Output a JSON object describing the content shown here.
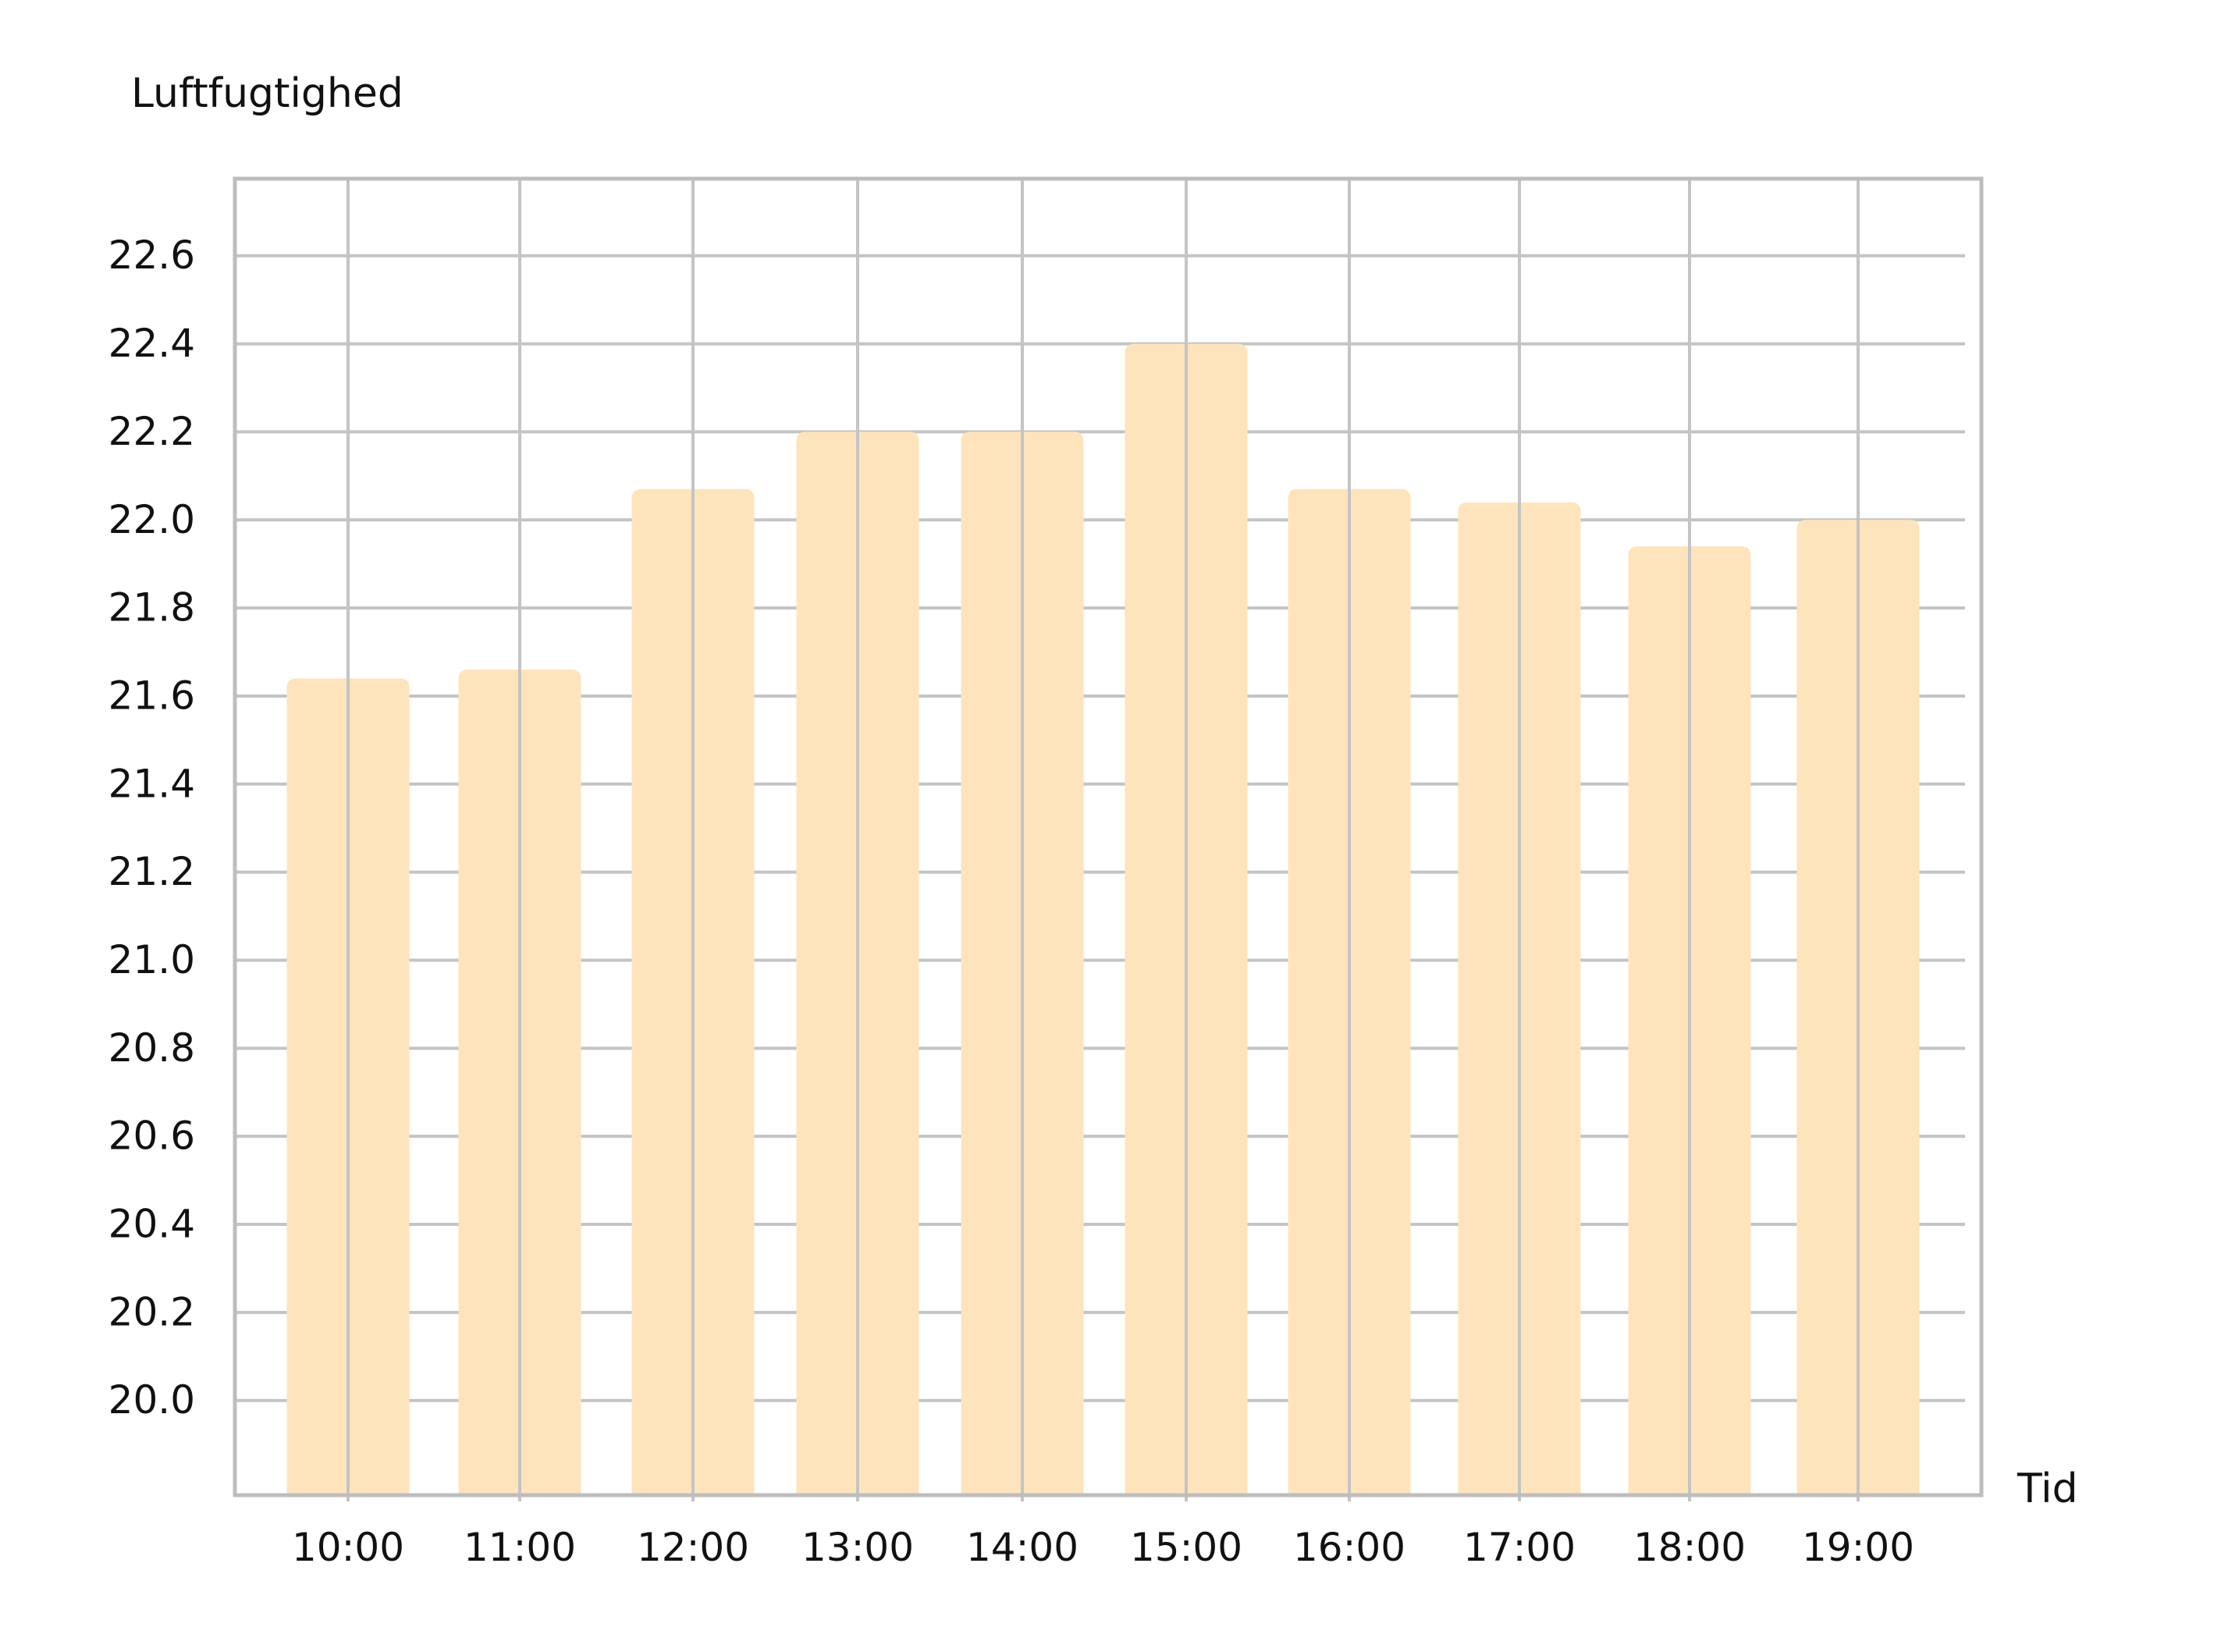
{
  "chart_data": {
    "type": "bar",
    "xlabel": "Tid",
    "ylabel": "Luftfugtighed",
    "categories": [
      "10:00",
      "11:00",
      "12:00",
      "13:00",
      "14:00",
      "15:00",
      "16:00",
      "17:00",
      "18:00",
      "19:00"
    ],
    "values": [
      21.64,
      21.66,
      22.07,
      22.2,
      22.2,
      22.4,
      22.07,
      22.04,
      21.94,
      22.0
    ],
    "ylim": [
      19.785,
      22.775
    ],
    "yticks": [
      "20.0",
      "20.2",
      "20.4",
      "20.6",
      "20.8",
      "21.0",
      "21.2",
      "21.4",
      "21.6",
      "21.8",
      "22.0",
      "22.2",
      "22.4",
      "22.6"
    ],
    "grid": true,
    "bar_color": "#fee4bd",
    "grid_color": "#c4c4c4"
  }
}
